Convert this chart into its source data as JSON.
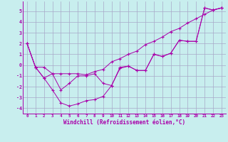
{
  "xlabel": "Windchill (Refroidissement éolien,°C)",
  "bg_color": "#c8eeee",
  "line_color": "#aa00aa",
  "grid_color": "#a8a8c8",
  "x_values": [
    0,
    1,
    2,
    3,
    4,
    5,
    6,
    7,
    8,
    9,
    10,
    11,
    12,
    13,
    14,
    15,
    16,
    17,
    18,
    19,
    20,
    21,
    22,
    23
  ],
  "line1_y": [
    2.0,
    -0.2,
    -0.2,
    -0.8,
    -0.8,
    -0.8,
    -0.8,
    -0.9,
    -0.6,
    -0.4,
    0.3,
    0.6,
    1.0,
    1.3,
    1.9,
    2.2,
    2.6,
    3.1,
    3.4,
    3.9,
    4.3,
    4.7,
    5.1,
    5.3
  ],
  "line2_y": [
    2.0,
    -0.2,
    -1.2,
    -0.8,
    -2.3,
    -1.7,
    -1.0,
    -1.0,
    -0.8,
    -1.7,
    -1.9,
    -0.3,
    -0.1,
    -0.5,
    -0.5,
    1.0,
    0.8,
    1.1,
    2.3,
    2.2,
    2.2,
    5.3,
    5.1,
    5.3
  ],
  "line3_y": [
    2.0,
    -0.2,
    -1.2,
    -2.3,
    -3.5,
    -3.8,
    -3.6,
    -3.3,
    -3.2,
    -2.9,
    -1.9,
    -0.2,
    -0.1,
    -0.5,
    -0.5,
    1.0,
    0.8,
    1.1,
    2.3,
    2.2,
    2.2,
    5.3,
    5.1,
    5.3
  ],
  "ylim": [
    -4.5,
    5.9
  ],
  "yticks": [
    -4,
    -3,
    -2,
    -1,
    0,
    1,
    2,
    3,
    4,
    5
  ],
  "xlim": [
    -0.5,
    23.5
  ]
}
